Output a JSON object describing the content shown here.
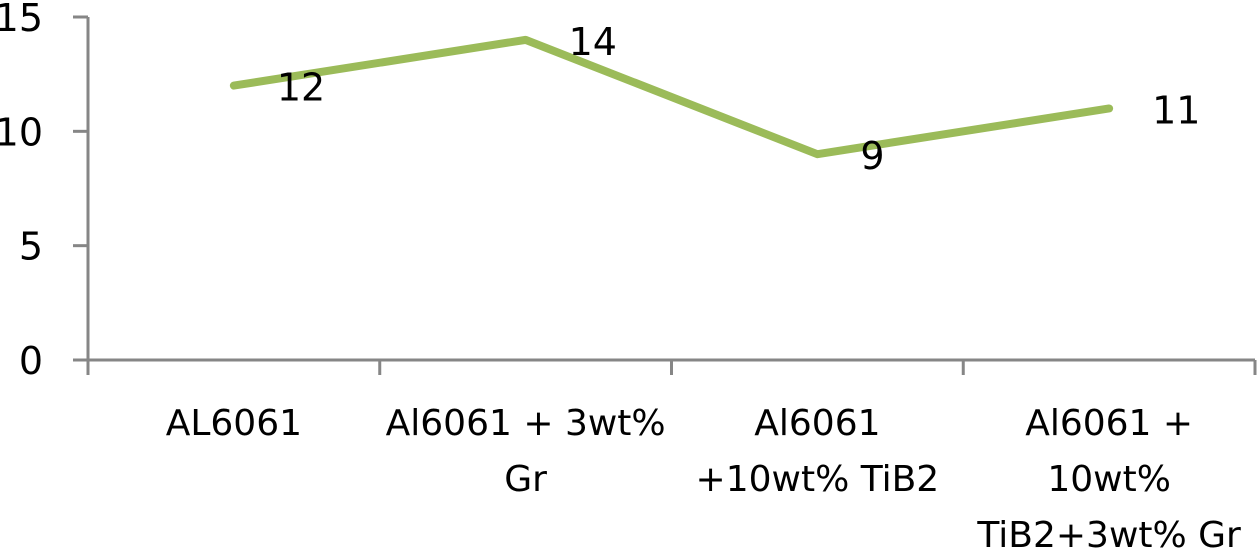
{
  "chart_data": {
    "type": "line",
    "title": "",
    "xlabel": "",
    "ylabel": "",
    "categories": [
      [
        "AL6061"
      ],
      [
        "Al6061 + 3wt%",
        "Gr"
      ],
      [
        "Al6061",
        "+10wt% TiB2"
      ],
      [
        "Al6061 +",
        "10wt%",
        "TiB2+3wt% Gr"
      ]
    ],
    "series": [
      {
        "values": [
          12,
          14,
          9,
          11
        ],
        "color": "#9BBB59"
      }
    ],
    "data_labels": [
      "12",
      "14",
      "9",
      "11"
    ],
    "ylim": [
      0,
      15
    ],
    "yticks": [
      "0",
      "5",
      "10",
      "15"
    ],
    "grid": false,
    "legend": "none",
    "axis_color": "#868686"
  }
}
